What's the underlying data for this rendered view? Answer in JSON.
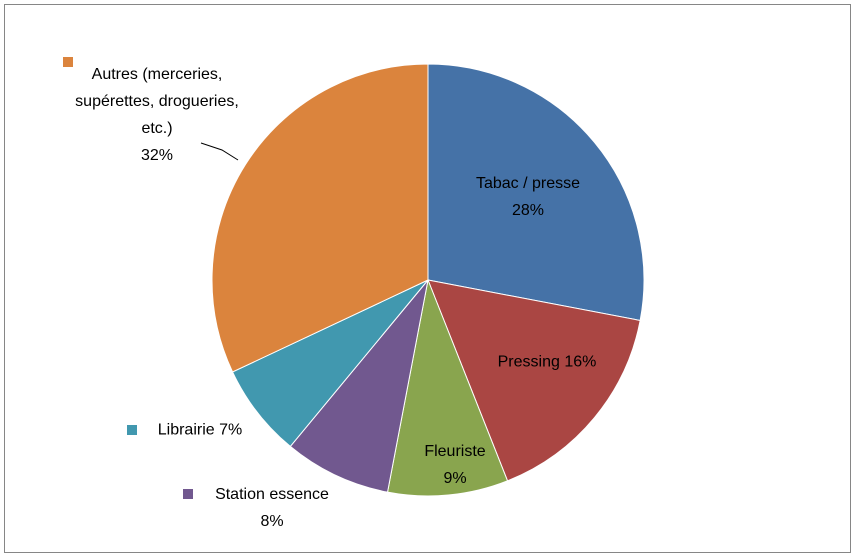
{
  "chart_data": {
    "type": "pie",
    "categories": [
      "Tabac / presse",
      "Pressing",
      "Fleuriste",
      "Station essence",
      "Librairie",
      "Autres (merceries, supérettes, drogueries, etc.)"
    ],
    "values": [
      28,
      16,
      9,
      8,
      7,
      32
    ],
    "value_labels": [
      "28%",
      "16%",
      "9%",
      "8%",
      "7%",
      "32%"
    ],
    "colors": [
      "#4572a7",
      "#aa4643",
      "#89a54e",
      "#71588f",
      "#4198af",
      "#db843d"
    ]
  }
}
